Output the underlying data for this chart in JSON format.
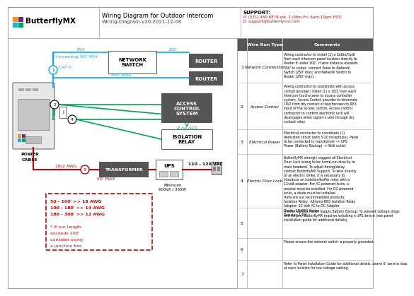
{
  "title": "Wiring Diagram for Outdoor Intercom",
  "subtitle": "Wiring-Diagram-v20-2021-12-08",
  "support_title": "SUPPORT:",
  "support_phone": "P: (571) 480.6879 ext. 2 (Mon-Fri, 6am-10pm EST)",
  "support_email": "E: support@butterflymx.com",
  "bg_color": "#ffffff",
  "cyan_color": "#00aeef",
  "green_color": "#00a651",
  "red_color": "#cc0000",
  "dark_gray": "#555555",
  "logo_colors": [
    "#f7941d",
    "#662d91",
    "#29abe2",
    "#00a651"
  ],
  "wire_rows": [
    {
      "num": "1",
      "type": "Network Connection",
      "comment": "Wiring contractor to install (1) a Cat6e/Cat6\nfrom each Intercom panel location directly to\nRouter if under 300'. If wire distance exceeds\n300' to router, connect Panel to Network\nSwitch (250' max) and Network Switch to\nRouter (250' max)."
    },
    {
      "num": "2",
      "type": "Access Control",
      "comment": "Wiring contractor to coordinate with access\ncontrol provider; install (1) x 18/2 from each\nIntercom touchscreen to access controller\nsystem. Access Control provider to terminate\n18/2 from dry contact of touchscreen to REX\ninput of the access control. Access control\ncontractor to confirm electronic lock will\ndisengages when signal is sent through dry\ncontact relay."
    },
    {
      "num": "3",
      "type": "Electrical Power",
      "comment": "Electrical contractor to coordinate (1)\ndedicated circuit (with 5-20 receptacle). Panel\nto be connected to transformer -> UPS\nPower (Battery Backup) -> Wall outlet"
    },
    {
      "num": "4",
      "type": "Electric Door Lock",
      "comment": "ButterflyMX strongly suggest all Electrical\nDoor Lock wiring to be home-run directly to\nmain headend. To adjust timing/delay,\ncontact ButterflyMX Support. To wire directly\nto an electric strike, it is necessary to\nintroduce an isolation/buffer relay with a\n12volt adapter. For AC-powered locks, a\nresistor must be installed. For DC-powered\nlocks, a diode must be installed.\nHere are our recommended products:\nIsolation Relay:  Altronix RB5 Isolation Relay\nAdapter: 12 Volt AC to DC Adapter\nDiode: 1N4001 Series\nResistor: 1450"
    },
    {
      "num": "5",
      "type": "",
      "comment": "Uninterruptible Power Supply Battery Backup. To prevent voltage drops\nand surges, ButterflyMX requires installing a UPS device (see panel\ninstallation guide for additional details)."
    },
    {
      "num": "6",
      "type": "",
      "comment": "Please ensure the network switch is properly grounded."
    },
    {
      "num": "7",
      "type": "",
      "comment": "Refer to Panel Installation Guide for additional details. Leave 6' service loop\nat each location for low voltage cabling."
    }
  ]
}
